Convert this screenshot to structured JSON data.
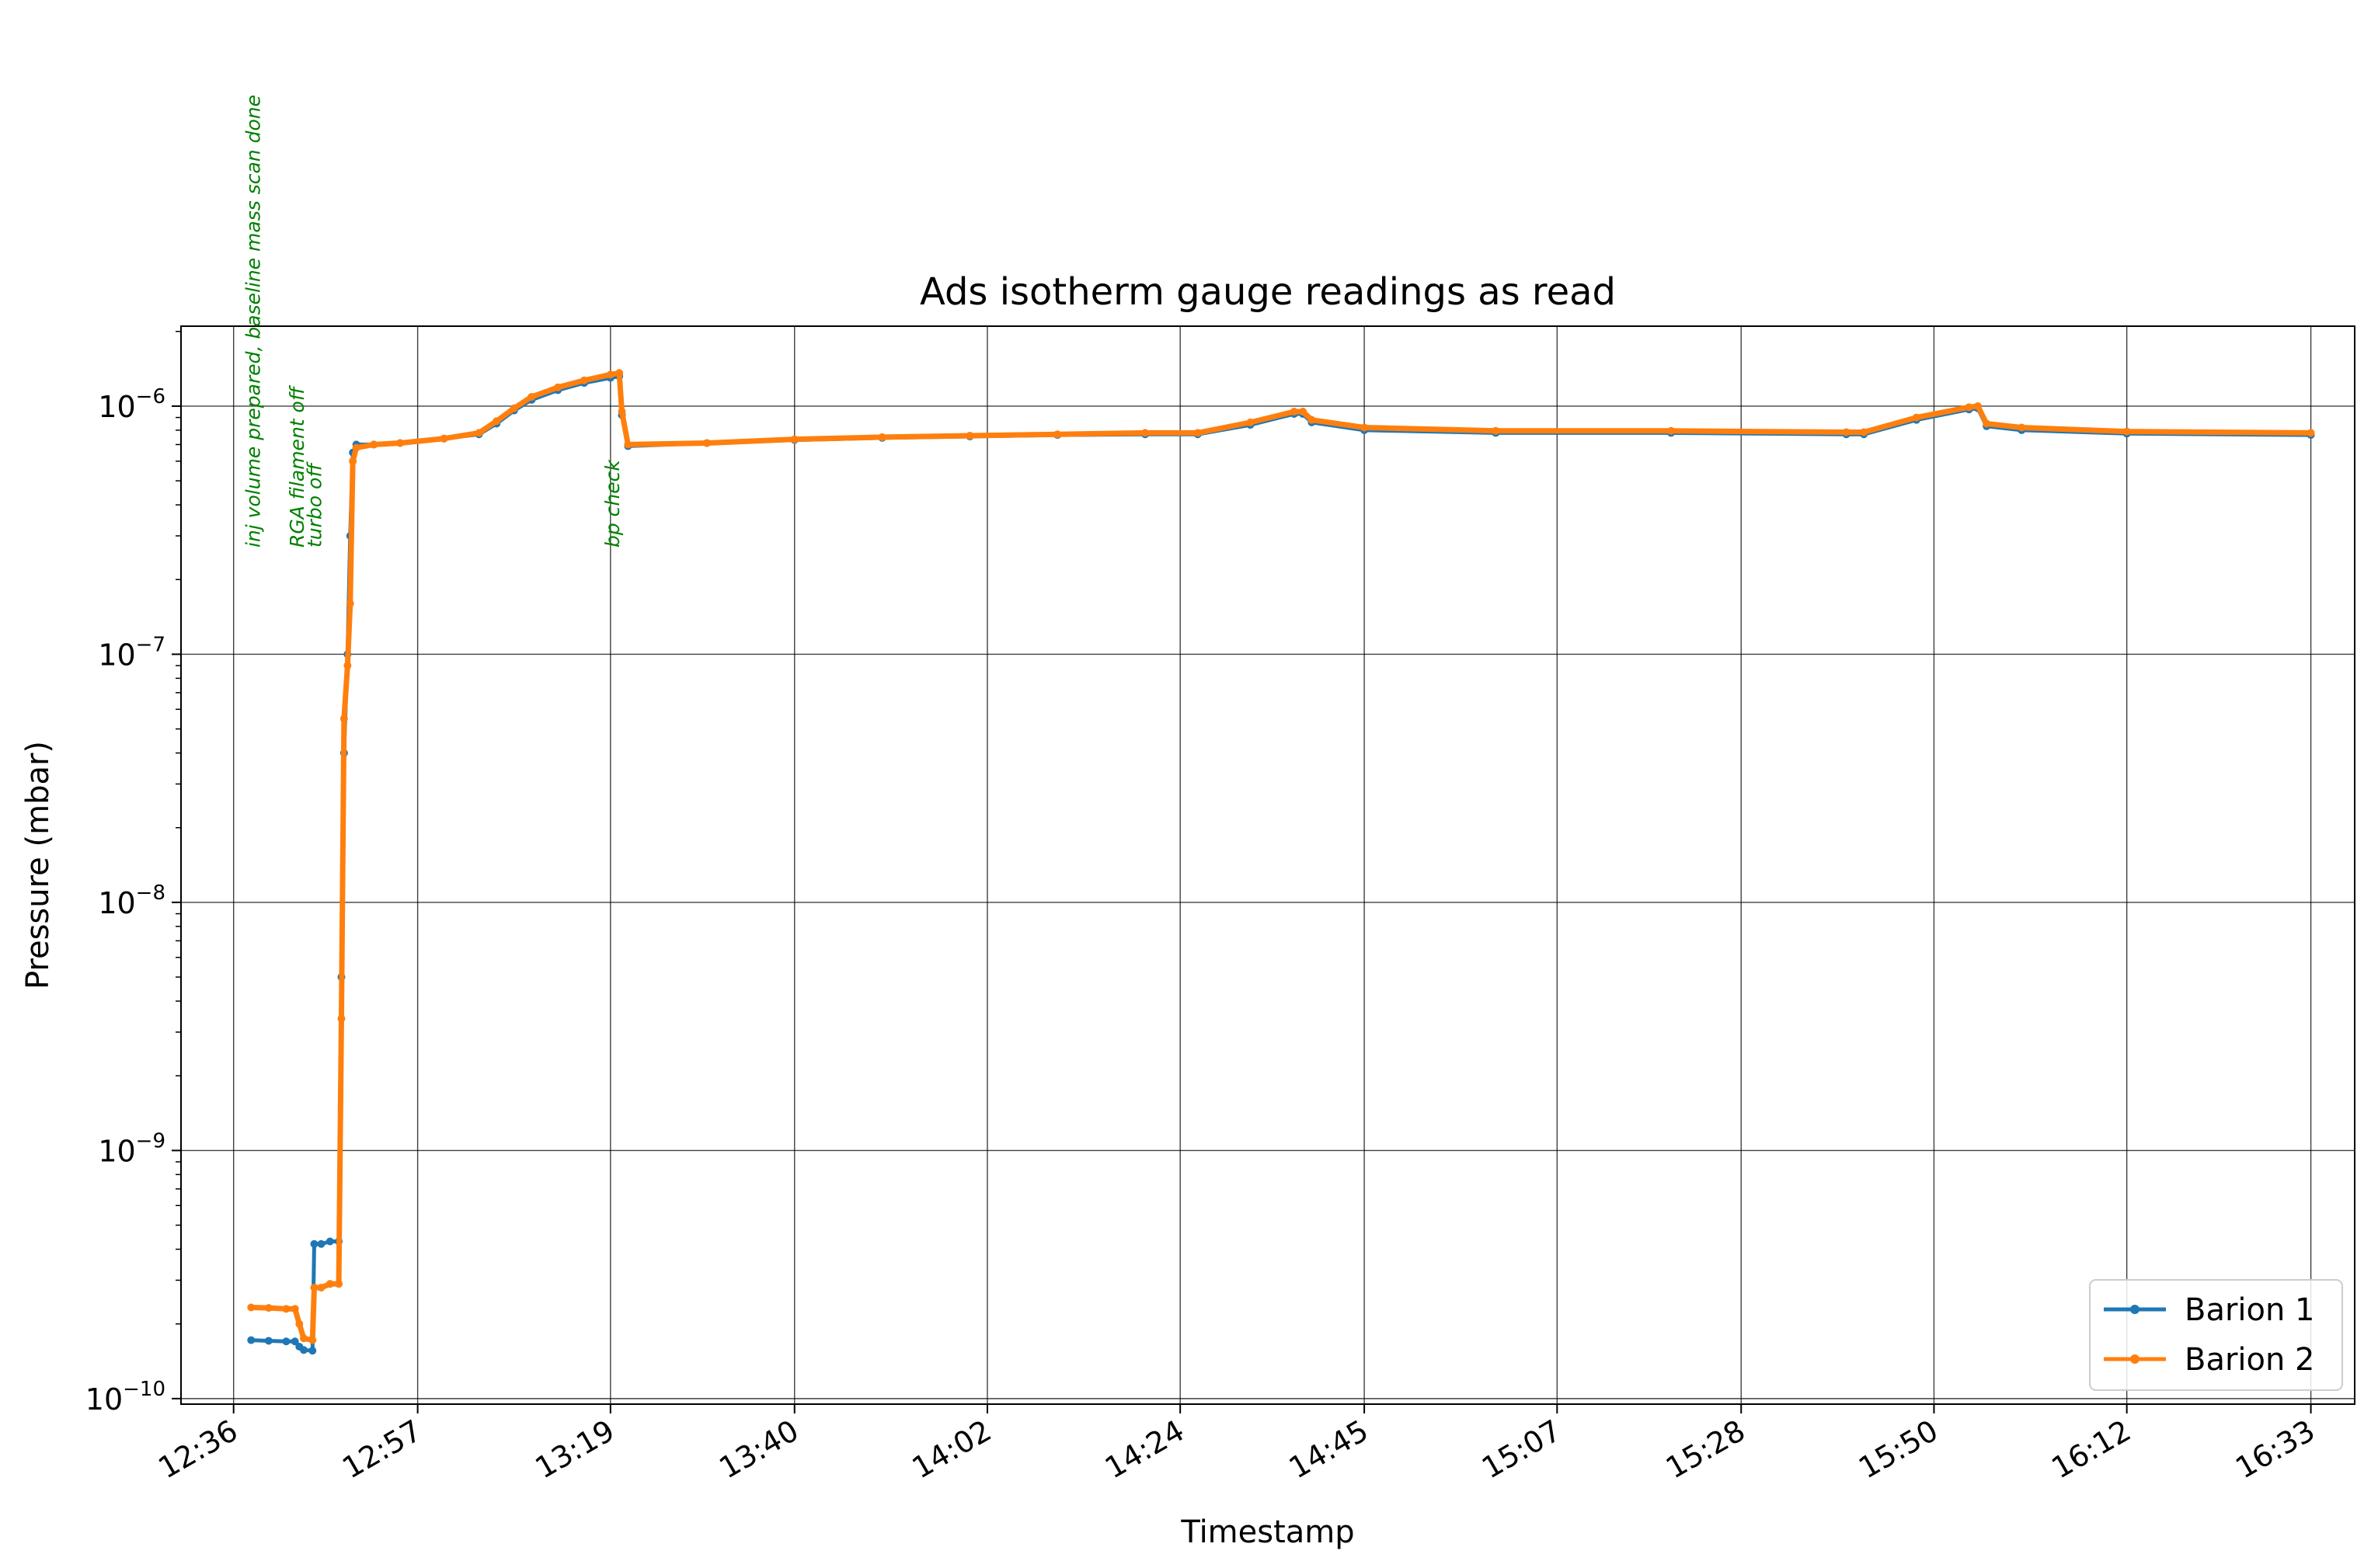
{
  "chart_data": {
    "type": "line",
    "title": "Ads isotherm gauge readings as read",
    "xlabel": "Timestamp",
    "ylabel": "Pressure (mbar)",
    "yscale": "log",
    "ylim": [
      9.5e-11,
      2.1e-06
    ],
    "xlim": [
      "12:30",
      "16:38"
    ],
    "x_ticks": [
      "12:36",
      "12:57",
      "13:19",
      "13:40",
      "14:02",
      "14:24",
      "14:45",
      "15:07",
      "15:28",
      "15:50",
      "16:12",
      "16:33"
    ],
    "y_ticks": [
      {
        "value": 1e-10,
        "base": "10",
        "exp": "−10"
      },
      {
        "value": 1e-09,
        "base": "10",
        "exp": "−9"
      },
      {
        "value": 1e-08,
        "base": "10",
        "exp": "−8"
      },
      {
        "value": 1e-07,
        "base": "10",
        "exp": "−7"
      },
      {
        "value": 1e-06,
        "base": "10",
        "exp": "−6"
      }
    ],
    "grid": true,
    "legend_position": "lower right",
    "annotations": [
      {
        "x": "12:39",
        "text": "inj volume prepared, baseline mass scan done"
      },
      {
        "x": "12:44",
        "text": "RGA filament off"
      },
      {
        "x": "12:46",
        "text": "turbo off"
      },
      {
        "x": "13:20",
        "text": "bp check"
      }
    ],
    "series": [
      {
        "name": "Barion 1",
        "color": "#1f77b4",
        "points": [
          [
            "12:38",
            1.72e-10
          ],
          [
            "12:40",
            1.71e-10
          ],
          [
            "12:42",
            1.7e-10
          ],
          [
            "12:43",
            1.7e-10
          ],
          [
            "12:43.5",
            1.62e-10
          ],
          [
            "12:44",
            1.57e-10
          ],
          [
            "12:45",
            1.56e-10
          ],
          [
            "12:45.2",
            4.2e-10
          ],
          [
            "12:46",
            4.2e-10
          ],
          [
            "12:47",
            4.3e-10
          ],
          [
            "12:48",
            4.3e-10
          ],
          [
            "12:48.3",
            5e-09
          ],
          [
            "12:48.6",
            4e-08
          ],
          [
            "12:49",
            1e-07
          ],
          [
            "12:49.3",
            3e-07
          ],
          [
            "12:49.6",
            6.5e-07
          ],
          [
            "12:50",
            7e-07
          ],
          [
            "12:52",
            7e-07
          ],
          [
            "12:55",
            7.1e-07
          ],
          [
            "13:00",
            7.4e-07
          ],
          [
            "13:04",
            7.7e-07
          ],
          [
            "13:06",
            8.5e-07
          ],
          [
            "13:08",
            9.6e-07
          ],
          [
            "13:10",
            1.06e-06
          ],
          [
            "13:13",
            1.16e-06
          ],
          [
            "13:16",
            1.24e-06
          ],
          [
            "13:19",
            1.3e-06
          ],
          [
            "13:20",
            1.32e-06
          ],
          [
            "13:20.3",
            9.2e-07
          ],
          [
            "13:21",
            6.9e-07
          ],
          [
            "13:30",
            7.1e-07
          ],
          [
            "13:40",
            7.3e-07
          ],
          [
            "13:50",
            7.45e-07
          ],
          [
            "14:00",
            7.55e-07
          ],
          [
            "14:10",
            7.65e-07
          ],
          [
            "14:20",
            7.7e-07
          ],
          [
            "14:26",
            7.7e-07
          ],
          [
            "14:32",
            8.4e-07
          ],
          [
            "14:37",
            9.3e-07
          ],
          [
            "14:38",
            9.3e-07
          ],
          [
            "14:39",
            8.6e-07
          ],
          [
            "14:45",
            8e-07
          ],
          [
            "15:00",
            7.8e-07
          ],
          [
            "15:20",
            7.8e-07
          ],
          [
            "15:40",
            7.7e-07
          ],
          [
            "15:42",
            7.7e-07
          ],
          [
            "15:48",
            8.8e-07
          ],
          [
            "15:54",
            9.7e-07
          ],
          [
            "15:55",
            9.8e-07
          ],
          [
            "15:56",
            8.3e-07
          ],
          [
            "16:00",
            8e-07
          ],
          [
            "16:12",
            7.75e-07
          ],
          [
            "16:33",
            7.65e-07
          ]
        ]
      },
      {
        "name": "Barion 2",
        "color": "#ff7f0e",
        "points": [
          [
            "12:38",
            2.33e-10
          ],
          [
            "12:40",
            2.32e-10
          ],
          [
            "12:42",
            2.3e-10
          ],
          [
            "12:43",
            2.3e-10
          ],
          [
            "12:43.5",
            2e-10
          ],
          [
            "12:44",
            1.75e-10
          ],
          [
            "12:45",
            1.72e-10
          ],
          [
            "12:45.2",
            2.8e-10
          ],
          [
            "12:46",
            2.8e-10
          ],
          [
            "12:47",
            2.9e-10
          ],
          [
            "12:48",
            2.9e-10
          ],
          [
            "12:48.3",
            3.4e-09
          ],
          [
            "12:48.6",
            5.5e-08
          ],
          [
            "12:49",
            9e-08
          ],
          [
            "12:49.3",
            1.6e-07
          ],
          [
            "12:49.6",
            6e-07
          ],
          [
            "12:50",
            6.8e-07
          ],
          [
            "12:52",
            7e-07
          ],
          [
            "12:55",
            7.1e-07
          ],
          [
            "13:00",
            7.4e-07
          ],
          [
            "13:04",
            7.8e-07
          ],
          [
            "13:06",
            8.7e-07
          ],
          [
            "13:08",
            9.8e-07
          ],
          [
            "13:10",
            1.09e-06
          ],
          [
            "13:13",
            1.19e-06
          ],
          [
            "13:16",
            1.27e-06
          ],
          [
            "13:19",
            1.34e-06
          ],
          [
            "13:20",
            1.36e-06
          ],
          [
            "13:20.3",
            9.5e-07
          ],
          [
            "13:21",
            7e-07
          ],
          [
            "13:30",
            7.1e-07
          ],
          [
            "13:40",
            7.35e-07
          ],
          [
            "13:50",
            7.5e-07
          ],
          [
            "14:00",
            7.6e-07
          ],
          [
            "14:10",
            7.7e-07
          ],
          [
            "14:20",
            7.8e-07
          ],
          [
            "14:26",
            7.8e-07
          ],
          [
            "14:32",
            8.6e-07
          ],
          [
            "14:37",
            9.5e-07
          ],
          [
            "14:38",
            9.5e-07
          ],
          [
            "14:39",
            8.8e-07
          ],
          [
            "14:45",
            8.2e-07
          ],
          [
            "15:00",
            7.95e-07
          ],
          [
            "15:20",
            7.95e-07
          ],
          [
            "15:40",
            7.85e-07
          ],
          [
            "15:42",
            7.85e-07
          ],
          [
            "15:48",
            9e-07
          ],
          [
            "15:54",
            9.9e-07
          ],
          [
            "15:55",
            1e-06
          ],
          [
            "15:56",
            8.5e-07
          ],
          [
            "16:00",
            8.2e-07
          ],
          [
            "16:12",
            7.9e-07
          ],
          [
            "16:33",
            7.8e-07
          ]
        ]
      }
    ]
  }
}
